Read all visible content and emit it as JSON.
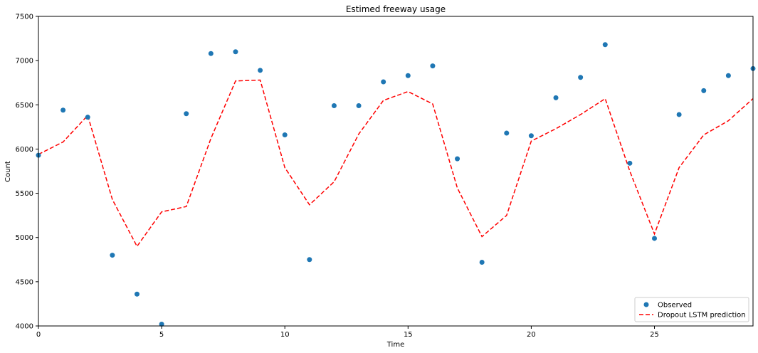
{
  "chart_data": {
    "type": "scatter",
    "title": "Estimed freeway usage",
    "xlabel": "Time",
    "ylabel": "Count",
    "xlim": [
      0,
      29
    ],
    "ylim": [
      4000,
      7500
    ],
    "x_ticks": [
      0,
      5,
      10,
      15,
      20,
      25
    ],
    "y_ticks": [
      4000,
      4500,
      5000,
      5500,
      6000,
      6500,
      7000,
      7500
    ],
    "grid": false,
    "legend_position": "lower-right",
    "series": [
      {
        "name": "Observed",
        "kind": "scatter",
        "color": "#1f77b4",
        "x": [
          0,
          1,
          2,
          3,
          4,
          5,
          6,
          7,
          8,
          9,
          10,
          11,
          12,
          13,
          14,
          15,
          16,
          17,
          18,
          19,
          20,
          21,
          22,
          23,
          24,
          25,
          26,
          27,
          28,
          29
        ],
        "y": [
          5930,
          6440,
          6360,
          4800,
          4360,
          4020,
          6400,
          7080,
          7100,
          6890,
          6160,
          4750,
          6490,
          6490,
          6760,
          6830,
          6940,
          5890,
          4720,
          6180,
          6150,
          6580,
          6810,
          7180,
          5840,
          4990,
          6390,
          6660,
          6830,
          6910
        ]
      },
      {
        "name": "Dropout LSTM prediction",
        "kind": "line",
        "style": "dashed",
        "color": "#ff0000",
        "x": [
          0,
          1,
          2,
          3,
          4,
          5,
          6,
          7,
          8,
          9,
          10,
          11,
          12,
          13,
          14,
          15,
          16,
          17,
          18,
          19,
          20,
          21,
          22,
          23,
          24,
          25,
          26,
          27,
          28,
          29
        ],
        "y": [
          5940,
          6080,
          6380,
          5430,
          4900,
          5290,
          5350,
          6120,
          6770,
          6780,
          5790,
          5370,
          5630,
          6170,
          6550,
          6650,
          6510,
          5560,
          5010,
          5250,
          6090,
          6230,
          6390,
          6570,
          5750,
          5040,
          5790,
          6160,
          6320,
          6570
        ]
      }
    ]
  }
}
